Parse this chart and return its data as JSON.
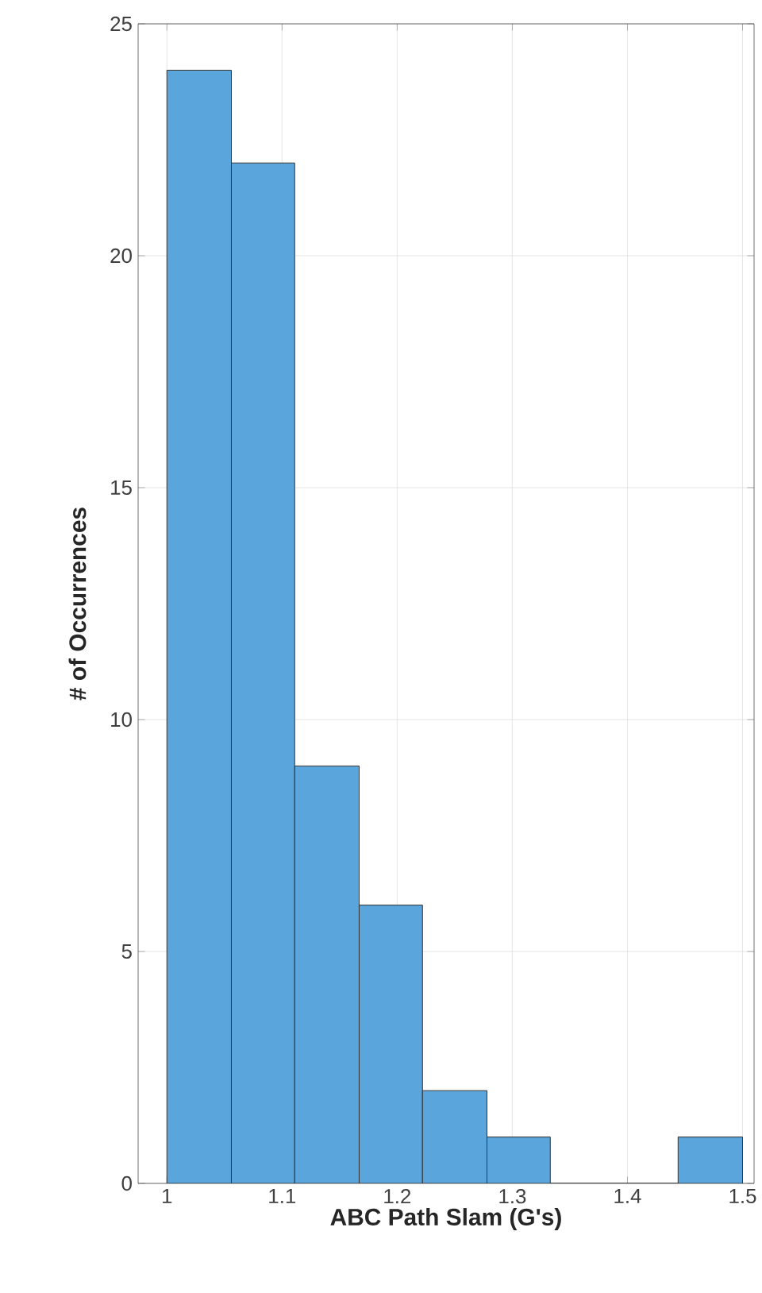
{
  "chart_data": {
    "type": "histogram",
    "xlabel": "ABC Path Slam (G's)",
    "ylabel": "# of Occurrences",
    "bins": [
      1.0,
      1.056,
      1.111,
      1.167,
      1.222,
      1.278,
      1.333,
      1.444,
      1.5
    ],
    "values": [
      24,
      22,
      9,
      6,
      2,
      1,
      0,
      1
    ],
    "color": "#5aa5dc",
    "xlim": [
      0.975,
      1.51
    ],
    "xticks": [
      1,
      1.1,
      1.2,
      1.3,
      1.4,
      1.5
    ],
    "ylim": [
      0,
      25
    ],
    "yticks": [
      0,
      5,
      10,
      15,
      20,
      25
    ],
    "grid": true
  }
}
